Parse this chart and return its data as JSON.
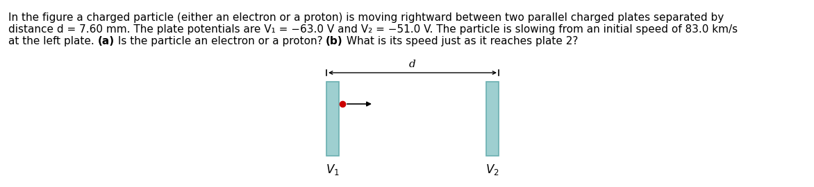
{
  "line1": "In the figure a charged particle (either an electron or a proton) is moving rightward between two parallel charged plates separated by",
  "line2": "distance d = 7.60 mm. The plate potentials are V₁ = −63.0 V and V₂ = −51.0 V. The particle is slowing from an initial speed of 83.0 km/s",
  "line3_parts": [
    {
      "text": "at the left plate. ",
      "bold": false
    },
    {
      "text": "(a)",
      "bold": true
    },
    {
      "text": " Is the particle an electron or a proton? ",
      "bold": false
    },
    {
      "text": "(b)",
      "bold": true
    },
    {
      "text": " What is its speed just as it reaches plate 2?",
      "bold": false
    }
  ],
  "plate_color": "#9ecfd0",
  "plate_edge_color": "#6aafb0",
  "particle_color": "#cc0000",
  "text_fontsize": 11.0,
  "diagram_fontsize": 11.0,
  "fig_width": 11.72,
  "fig_height": 2.7,
  "dpi": 100
}
